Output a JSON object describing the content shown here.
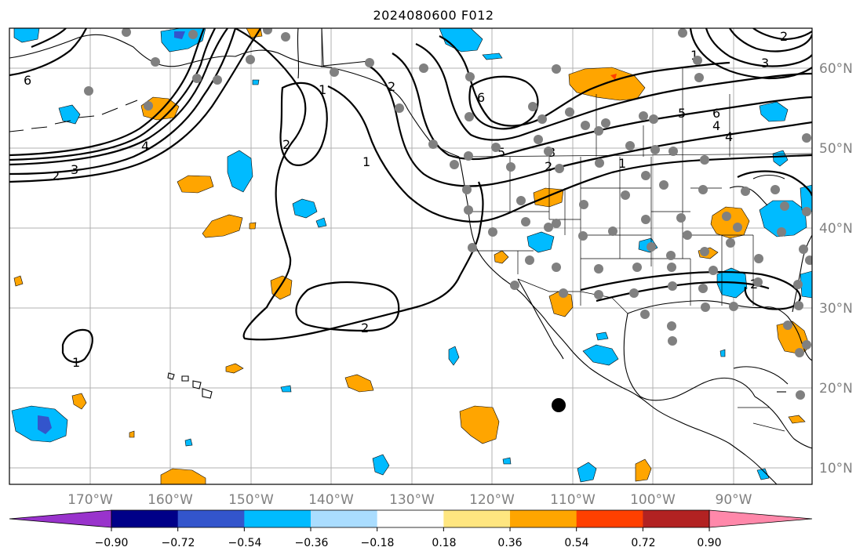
{
  "title": "2024080600 F012",
  "lon_labels": [
    "170°W",
    "160°W",
    "150°W",
    "140°W",
    "130°W",
    "120°W",
    "110°W",
    "100°W",
    "90°W"
  ],
  "lat_labels": [
    "60°N",
    "50°N",
    "40°N",
    "30°N",
    "20°N",
    "10°N"
  ],
  "colorbar": {
    "ticks": [
      "−0.90",
      "−0.72",
      "−0.54",
      "−0.36",
      "−0.18",
      "0.18",
      "0.36",
      "0.54",
      "0.72",
      "0.90"
    ],
    "colors": [
      "#9933cc",
      "#000088",
      "#3355cc",
      "#00bbff",
      "#aaddff",
      "#ffffff",
      "#ffe680",
      "#ffa500",
      "#ff4000",
      "#b22222",
      "#ff88aa"
    ]
  },
  "contour_labels": [
    "6",
    "4",
    "3",
    "2",
    "1",
    "2",
    "2",
    "1",
    "1",
    "2",
    "6",
    "5",
    "4",
    "3",
    "2",
    "1",
    "6",
    "5",
    "4",
    "3",
    "2",
    "2",
    "1"
  ],
  "colors": {
    "grid": "#b0b0b0",
    "station": "#808080",
    "marker": "#000000",
    "pos_fill": "#ffa500",
    "neg_fill": "#00bbff",
    "neg_strong": "#3355cc"
  }
}
